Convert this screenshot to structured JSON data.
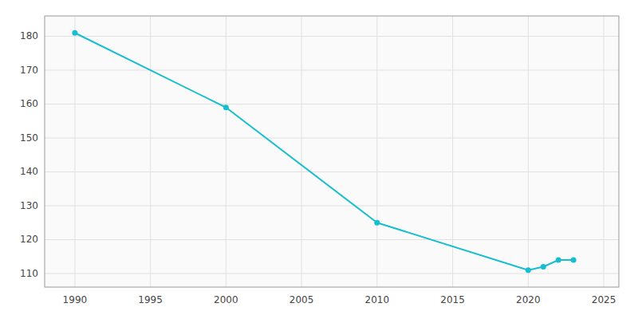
{
  "chart_data": {
    "type": "line",
    "x": [
      1990,
      2000,
      2010,
      2020,
      2021,
      2022,
      2023
    ],
    "values": [
      181,
      159,
      125,
      111,
      112,
      114,
      114
    ],
    "color": "#17becf",
    "marker": "circle",
    "xlim": [
      1988,
      2026
    ],
    "ylim": [
      106,
      186
    ],
    "xticks": [
      1990,
      1995,
      2000,
      2005,
      2010,
      2015,
      2020,
      2025
    ],
    "yticks": [
      110,
      120,
      130,
      140,
      150,
      160,
      170,
      180
    ],
    "grid": true
  }
}
